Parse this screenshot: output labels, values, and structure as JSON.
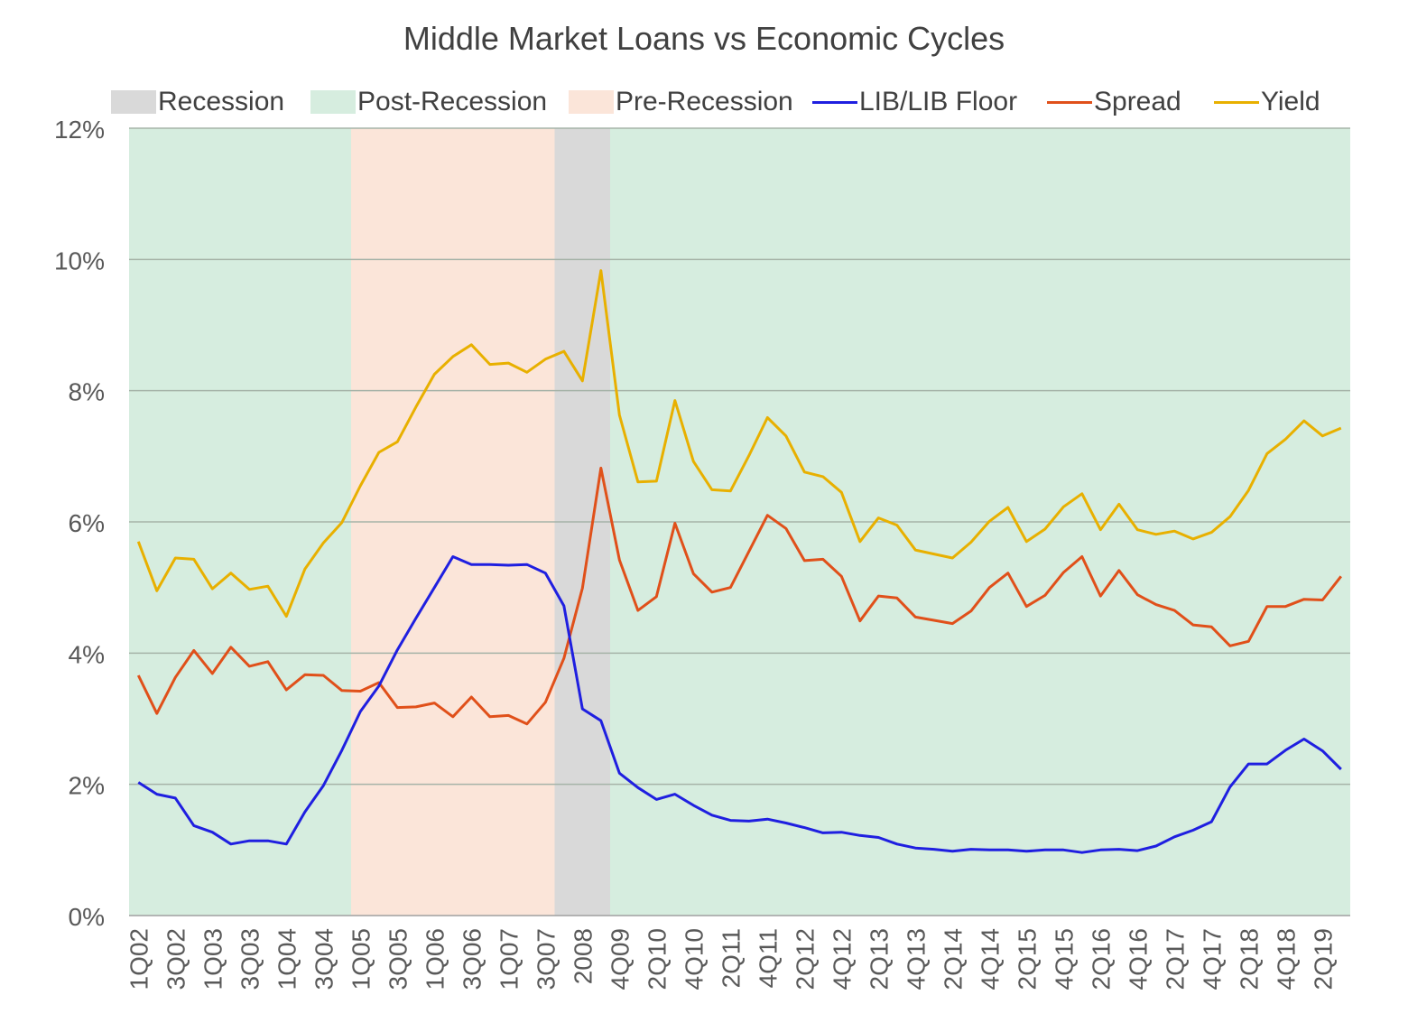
{
  "chart_data": {
    "type": "line",
    "title": "Middle Market Loans vs Economic Cycles",
    "xlabel": "",
    "ylabel": "",
    "ylim": [
      0,
      12
    ],
    "yticks": [
      "0%",
      "2%",
      "4%",
      "6%",
      "8%",
      "10%",
      "12%"
    ],
    "grid": "horizontal",
    "legend_position": "top",
    "x_tick_labels": [
      "1Q02",
      "3Q02",
      "1Q03",
      "3Q03",
      "1Q04",
      "3Q04",
      "1Q05",
      "3Q05",
      "1Q06",
      "3Q06",
      "1Q07",
      "3Q07",
      "2008",
      "4Q09",
      "2Q10",
      "4Q10",
      "2Q11",
      "4Q11",
      "2Q12",
      "4Q12",
      "2Q13",
      "4Q13",
      "2Q14",
      "4Q14",
      "2Q15",
      "4Q15",
      "2Q16",
      "4Q16",
      "2Q17",
      "4Q17",
      "2Q18",
      "4Q18",
      "2Q19"
    ],
    "x_tick_positions": [
      0,
      2,
      4,
      6,
      8,
      10,
      12,
      14,
      16,
      18,
      20,
      22,
      24,
      26,
      28,
      30,
      32,
      34,
      36,
      38,
      40,
      42,
      44,
      46,
      48,
      50,
      52,
      54,
      56,
      58,
      60,
      62,
      64
    ],
    "n_points": 66,
    "bands": [
      {
        "name": "Post-Recession",
        "start": -0.5,
        "end": 11.5,
        "color": "#d6eddf"
      },
      {
        "name": "Pre-Recession",
        "start": 11.5,
        "end": 22.5,
        "color": "#fbe5d9"
      },
      {
        "name": "Recession",
        "start": 22.5,
        "end": 25.5,
        "color": "#d9d9d9"
      },
      {
        "name": "Post-Recession",
        "start": 25.5,
        "end": 65.5,
        "color": "#d6eddf"
      }
    ],
    "legend": [
      {
        "name": "Recession",
        "kind": "area",
        "color": "#d9d9d9"
      },
      {
        "name": "Post-Recession",
        "kind": "area",
        "color": "#d6eddf"
      },
      {
        "name": "Pre-Recession",
        "kind": "area",
        "color": "#fbe5d9"
      },
      {
        "name": "LIB/LIB Floor",
        "kind": "line",
        "color": "#1f1fe0"
      },
      {
        "name": "Spread",
        "kind": "line",
        "color": "#e0501a"
      },
      {
        "name": "Yield",
        "kind": "line",
        "color": "#e8b000"
      }
    ],
    "series": [
      {
        "name": "Yield",
        "color": "#e8b000",
        "values": [
          5.7,
          4.95,
          5.45,
          5.43,
          4.98,
          5.22,
          4.97,
          5.02,
          4.56,
          5.28,
          5.68,
          5.99,
          6.55,
          7.06,
          7.22,
          7.75,
          8.25,
          8.52,
          8.7,
          8.4,
          8.42,
          8.28,
          8.48,
          8.6,
          8.15,
          9.83,
          7.63,
          6.61,
          6.62,
          7.85,
          6.92,
          6.49,
          6.47,
          7.01,
          7.59,
          7.31,
          6.76,
          6.69,
          6.45,
          5.7,
          6.06,
          5.95,
          5.57,
          5.51,
          5.45,
          5.69,
          6.01,
          6.22,
          5.7,
          5.89,
          6.23,
          6.43,
          5.88,
          6.27,
          5.88,
          5.81,
          5.86,
          5.74,
          5.84,
          6.08,
          6.48,
          7.04,
          7.26,
          7.54,
          7.31,
          7.43
        ]
      },
      {
        "name": "Spread",
        "color": "#e0501a",
        "values": [
          3.66,
          3.08,
          3.63,
          4.04,
          3.69,
          4.09,
          3.8,
          3.87,
          3.44,
          3.67,
          3.66,
          3.43,
          3.42,
          3.55,
          3.17,
          3.18,
          3.24,
          3.03,
          3.33,
          3.03,
          3.05,
          2.92,
          3.25,
          3.92,
          4.99,
          6.82,
          5.42,
          4.65,
          4.86,
          5.98,
          5.21,
          4.93,
          5.0,
          5.55,
          6.1,
          5.9,
          5.41,
          5.43,
          5.17,
          4.49,
          4.87,
          4.84,
          4.55,
          4.5,
          4.45,
          4.64,
          5.0,
          5.22,
          4.71,
          4.88,
          5.23,
          5.47,
          4.87,
          5.26,
          4.89,
          4.74,
          4.65,
          4.43,
          4.4,
          4.11,
          4.18,
          4.71,
          4.71,
          4.82,
          4.81,
          5.17
        ]
      },
      {
        "name": "LIB/LIB Floor",
        "color": "#1f1fe0",
        "values": [
          2.03,
          1.85,
          1.79,
          1.37,
          1.27,
          1.09,
          1.14,
          1.14,
          1.09,
          1.58,
          1.98,
          2.52,
          3.11,
          3.5,
          4.05,
          4.53,
          5.0,
          5.47,
          5.35,
          5.35,
          5.34,
          5.35,
          5.22,
          4.72,
          3.15,
          2.97,
          2.17,
          1.95,
          1.77,
          1.85,
          1.68,
          1.53,
          1.45,
          1.44,
          1.47,
          1.41,
          1.34,
          1.26,
          1.27,
          1.22,
          1.19,
          1.09,
          1.03,
          1.01,
          0.98,
          1.01,
          1.0,
          1.0,
          0.98,
          1.0,
          1.0,
          0.96,
          1.0,
          1.01,
          0.99,
          1.06,
          1.2,
          1.3,
          1.43,
          1.96,
          2.31,
          2.31,
          2.52,
          2.69,
          2.51,
          2.23
        ]
      }
    ]
  }
}
